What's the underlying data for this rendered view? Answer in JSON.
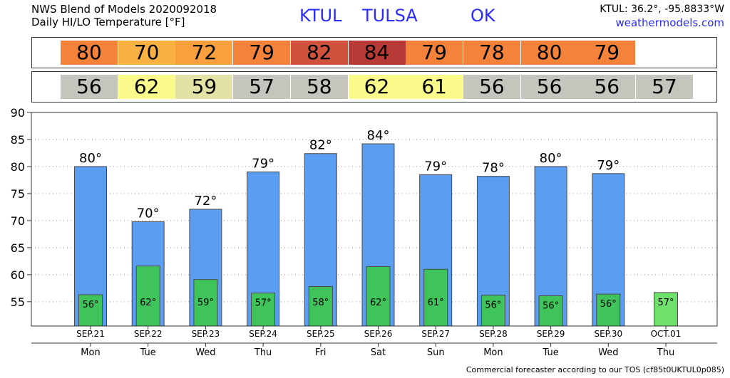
{
  "header": {
    "title_line1": "NWS Blend of Models 2020092018",
    "title_line2": "Daily HI/LO Temperature [°F]",
    "station": "KTUL",
    "city": "TULSA",
    "state": "OK",
    "coords": "KTUL: 36.2°, -95.8833°W",
    "site": "weathermodels.com"
  },
  "footer": "Commercial forecaster according to our TOS (cf85t0UKTUL0p085)",
  "strips": {
    "hi": [
      {
        "value": "80",
        "color": "#f4823a"
      },
      {
        "value": "70",
        "color": "#f9b242"
      },
      {
        "value": "72",
        "color": "#f8a03e"
      },
      {
        "value": "79",
        "color": "#f4823a"
      },
      {
        "value": "82",
        "color": "#d0523c"
      },
      {
        "value": "84",
        "color": "#b83a36"
      },
      {
        "value": "79",
        "color": "#f4823a"
      },
      {
        "value": "78",
        "color": "#f4823a"
      },
      {
        "value": "80",
        "color": "#f4823a"
      },
      {
        "value": "79",
        "color": "#f4823a"
      }
    ],
    "lo": [
      {
        "value": "56",
        "color": "#c5c5bd"
      },
      {
        "value": "62",
        "color": "#fbfb8c"
      },
      {
        "value": "59",
        "color": "#e3e2a6"
      },
      {
        "value": "57",
        "color": "#c5c5bd"
      },
      {
        "value": "58",
        "color": "#c5c5bd"
      },
      {
        "value": "62",
        "color": "#fbfb8c"
      },
      {
        "value": "61",
        "color": "#fbfb8c"
      },
      {
        "value": "56",
        "color": "#c5c5bd"
      },
      {
        "value": "56",
        "color": "#c5c5bd"
      },
      {
        "value": "56",
        "color": "#c5c5bd"
      },
      {
        "value": "57",
        "color": "#c5c5bd"
      }
    ]
  },
  "chart_data": {
    "type": "bar",
    "categories": [
      "SEP.21",
      "SEP.22",
      "SEP.23",
      "SEP.24",
      "SEP.25",
      "SEP.26",
      "SEP.27",
      "SEP.28",
      "SEP.29",
      "SEP.30",
      "OCT.01"
    ],
    "days": [
      "Mon",
      "Tue",
      "Wed",
      "Thu",
      "Fri",
      "Sat",
      "Sun",
      "Mon",
      "Tue",
      "Wed",
      "Thu"
    ],
    "series": [
      {
        "values": [
          80,
          69.8,
          72.1,
          79,
          82.4,
          84.2,
          78.5,
          78.2,
          80,
          78.7,
          null
        ],
        "labels": [
          "80°",
          "70°",
          "72°",
          "79°",
          "82°",
          "84°",
          "79°",
          "78°",
          "80°",
          "79°",
          ""
        ],
        "color": "#5b9df0"
      },
      {
        "values": [
          56.3,
          61.6,
          59.1,
          56.6,
          57.8,
          61.5,
          61,
          56.2,
          56.1,
          56.4,
          56.7
        ],
        "labels": [
          "56°",
          "62°",
          "59°",
          "57°",
          "58°",
          "62°",
          "61°",
          "56°",
          "56°",
          "56°",
          "57°"
        ],
        "color": "#3ec45a"
      }
    ],
    "ylim": [
      50.5,
      90
    ],
    "yticks": [
      55,
      60,
      65,
      70,
      75,
      80,
      85,
      90
    ],
    "grid": true
  }
}
